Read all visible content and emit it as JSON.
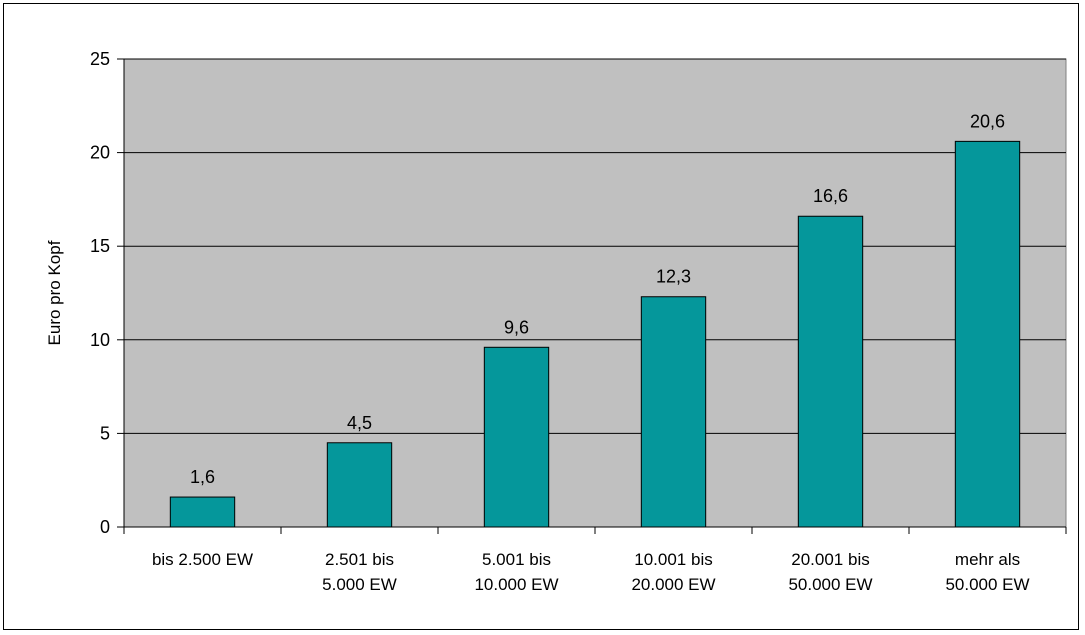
{
  "chart_data": {
    "type": "bar",
    "title": "",
    "xlabel": "",
    "ylabel": "Euro pro Kopf",
    "ylim": [
      0,
      25
    ],
    "yticks": [
      0,
      5,
      10,
      15,
      20,
      25
    ],
    "grid": true,
    "legend": "none",
    "categories": [
      [
        "bis 2.500 EW"
      ],
      [
        "2.501 bis",
        "5.000 EW"
      ],
      [
        "5.001 bis",
        "10.000 EW"
      ],
      [
        "10.001 bis",
        "20.000 EW"
      ],
      [
        "20.001 bis",
        "50.000 EW"
      ],
      [
        "mehr als",
        "50.000 EW"
      ]
    ],
    "values": [
      1.6,
      4.5,
      9.6,
      12.3,
      16.6,
      20.6
    ],
    "data_labels": [
      "1,6",
      "4,5",
      "9,6",
      "12,3",
      "16,6",
      "20,6"
    ],
    "colors": {
      "bar_fill": "#05979B",
      "plot_background": "#C0C0C0",
      "gridline": "#000000"
    }
  }
}
